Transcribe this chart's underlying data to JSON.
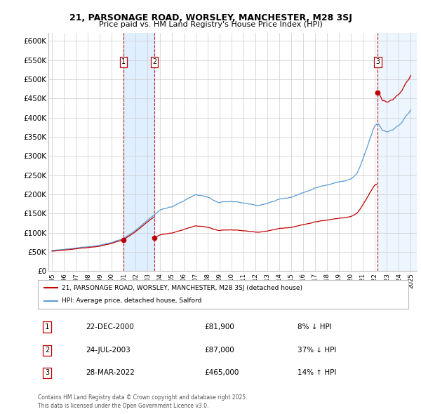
{
  "title_line1": "21, PARSONAGE ROAD, WORSLEY, MANCHESTER, M28 3SJ",
  "title_line2": "Price paid vs. HM Land Registry's House Price Index (HPI)",
  "ylim": [
    0,
    620000
  ],
  "yticks": [
    0,
    50000,
    100000,
    150000,
    200000,
    250000,
    300000,
    350000,
    400000,
    450000,
    500000,
    550000,
    600000
  ],
  "ytick_labels": [
    "£0",
    "£50K",
    "£100K",
    "£150K",
    "£200K",
    "£250K",
    "£300K",
    "£350K",
    "£400K",
    "£450K",
    "£500K",
    "£550K",
    "£600K"
  ],
  "hpi_color": "#5b9bd5",
  "price_color": "#c00000",
  "dashed_line_color": "#c00000",
  "shade_color": "#ddeeff",
  "legend_label_price": "21, PARSONAGE ROAD, WORSLEY, MANCHESTER, M28 3SJ (detached house)",
  "legend_label_hpi": "HPI: Average price, detached house, Salford",
  "transactions": [
    {
      "label": "1",
      "date": "22-DEC-2000",
      "price": 81900,
      "note": "8% ↓ HPI",
      "x_year": 2000.97
    },
    {
      "label": "2",
      "date": "24-JUL-2003",
      "price": 87000,
      "note": "37% ↓ HPI",
      "x_year": 2003.56
    },
    {
      "label": "3",
      "date": "28-MAR-2022",
      "price": 465000,
      "note": "14% ↑ HPI",
      "x_year": 2022.23
    }
  ],
  "footer_text": "Contains HM Land Registry data © Crown copyright and database right 2025.\nThis data is licensed under the Open Government Licence v3.0.",
  "background_color": "#ffffff",
  "grid_color": "#cccccc",
  "xmin": 1994.7,
  "xmax": 2025.5
}
